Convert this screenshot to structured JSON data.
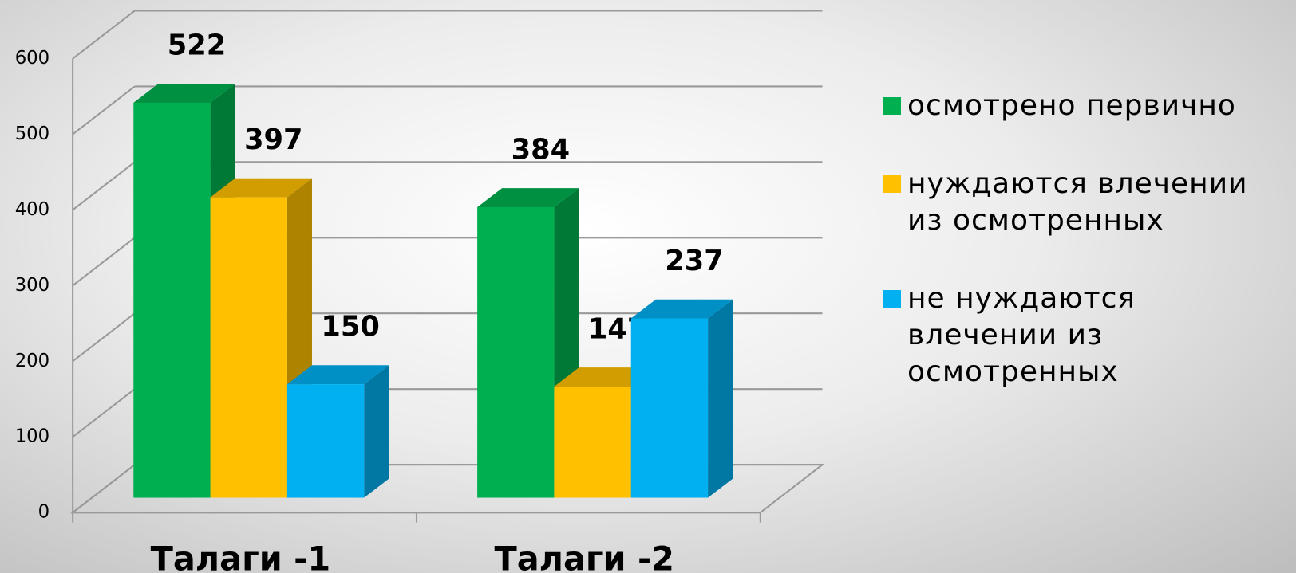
{
  "chart_data": {
    "type": "bar3d",
    "categories": [
      "Талаги -1",
      "Талаги -2"
    ],
    "series": [
      {
        "name": "осмотрено первично",
        "color": "#00b050",
        "values": [
          522,
          384
        ]
      },
      {
        "name": "нуждаются влечении из осмотренных",
        "color": "#ffc000",
        "values": [
          397,
          147
        ]
      },
      {
        "name": "не нуждаются влечении из осмотренных",
        "color": "#00b0f0",
        "values": [
          150,
          237
        ]
      }
    ],
    "ylim": [
      0,
      600
    ],
    "yticks": [
      0,
      100,
      200,
      300,
      400,
      500,
      600
    ],
    "grid": true,
    "legend": "right"
  }
}
